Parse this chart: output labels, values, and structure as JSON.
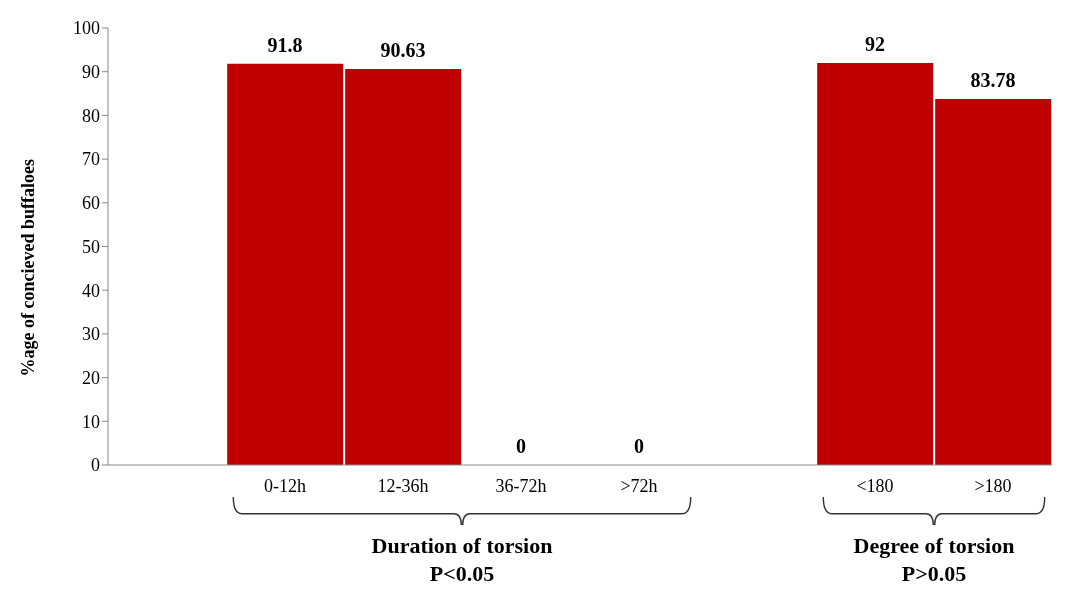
{
  "chart_data": {
    "type": "bar",
    "ylabel": "%age of concieved buffaloes",
    "categories": [
      null,
      "0-12h",
      "12-36h",
      "36-72h",
      ">72h",
      null,
      "<180",
      ">180"
    ],
    "values": [
      null,
      91.8,
      90.63,
      0,
      0,
      null,
      92,
      83.78
    ],
    "color": "#c00000",
    "ylim": [
      0,
      100
    ],
    "yticks": [
      0,
      10,
      20,
      30,
      40,
      50,
      60,
      70,
      80,
      90,
      100
    ],
    "data_labels": true,
    "annotations": [
      "Duration of torsion\nP<0.05",
      "Degree of torsion\nP>0.05"
    ]
  }
}
